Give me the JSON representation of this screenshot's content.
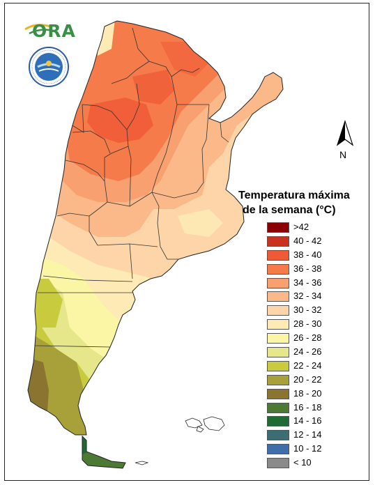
{
  "logo": {
    "text": "ORA"
  },
  "seal": {
    "ring_text": "SERVICIO METEOROLÓGICO NACIONAL · ARGENTINA"
  },
  "north": {
    "label": "N"
  },
  "legend": {
    "title_line1": "Temperatura máxima",
    "title_line2": "de la semana (°C)",
    "items": [
      {
        "label": ">42",
        "color": "#8b0000"
      },
      {
        "label": "40 - 42",
        "color": "#c8321e"
      },
      {
        "label": "38 - 40",
        "color": "#ee5a36"
      },
      {
        "label": "36 - 38",
        "color": "#f57b4a"
      },
      {
        "label": "34 - 36",
        "color": "#f8a06f"
      },
      {
        "label": "32 - 34",
        "color": "#fbb98a"
      },
      {
        "label": "30 - 32",
        "color": "#fdd5a8"
      },
      {
        "label": "28 - 30",
        "color": "#fdeab4"
      },
      {
        "label": "26 - 28",
        "color": "#fbf6a6"
      },
      {
        "label": "24 - 26",
        "color": "#e6e78a"
      },
      {
        "label": "22 - 24",
        "color": "#c9cb3e"
      },
      {
        "label": "20 - 22",
        "color": "#a8a038"
      },
      {
        "label": "18 - 20",
        "color": "#8a7430"
      },
      {
        "label": "16 - 18",
        "color": "#4c7a35"
      },
      {
        "label": "14 - 16",
        "color": "#1f6b33"
      },
      {
        "label": "12 - 14",
        "color": "#3c6d72"
      },
      {
        "label": "10 - 12",
        "color": "#3f6ea8"
      },
      {
        "label": "< 10",
        "color": "#8a8a8a"
      }
    ]
  }
}
